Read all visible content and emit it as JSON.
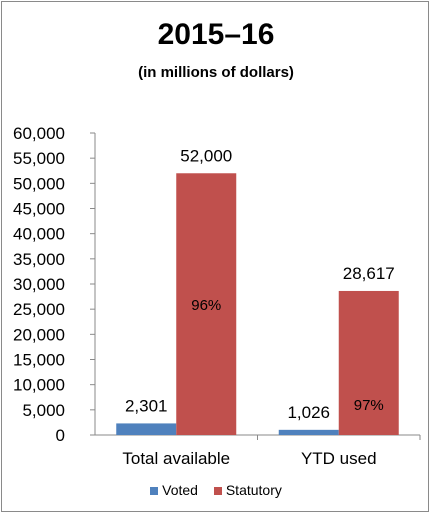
{
  "chart_data": {
    "type": "bar",
    "title": "2015–16",
    "subtitle": "(in millions of dollars)",
    "categories": [
      "Total available",
      "YTD used"
    ],
    "series": [
      {
        "name": "Voted",
        "color": "#4f81bd",
        "values": [
          2301,
          1026
        ],
        "labels": [
          "2,301",
          "1,026"
        ]
      },
      {
        "name": "Statutory",
        "color": "#c0504d",
        "values": [
          52000,
          28617
        ],
        "labels": [
          "52,000",
          "28,617"
        ]
      }
    ],
    "percent_labels": [
      "96%",
      "97%"
    ],
    "yticks": [
      "0",
      "5,000",
      "10,000",
      "15,000",
      "20,000",
      "25,000",
      "30,000",
      "35,000",
      "40,000",
      "45,000",
      "50,000",
      "55,000",
      "60,000"
    ],
    "ylim": [
      0,
      60000
    ],
    "grid": false,
    "legend_position": "bottom"
  }
}
